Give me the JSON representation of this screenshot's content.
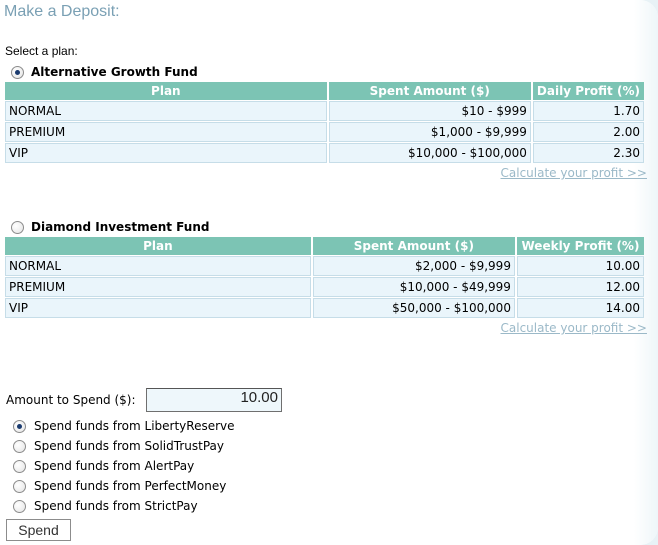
{
  "page": {
    "title": "Make a Deposit:",
    "select_label": "Select a plan:"
  },
  "funds": [
    {
      "name": "Alternative Growth Fund",
      "selected": true,
      "columns": [
        "Plan",
        "Spent Amount ($)",
        "Daily Profit (%)"
      ],
      "rows": [
        [
          "NORMAL",
          "$10 - $999",
          "1.70"
        ],
        [
          "PREMIUM",
          "$1,000 - $9,999",
          "2.00"
        ],
        [
          "VIP",
          "$10,000 - $100,000",
          "2.30"
        ]
      ],
      "calc_link": "Calculate your profit >>"
    },
    {
      "name": "Diamond Investment Fund",
      "selected": false,
      "columns": [
        "Plan",
        "Spent Amount ($)",
        "Weekly Profit (%)"
      ],
      "rows": [
        [
          "NORMAL",
          "$2,000 - $9,999",
          "10.00"
        ],
        [
          "PREMIUM",
          "$10,000 - $49,999",
          "12.00"
        ],
        [
          "VIP",
          "$50,000 - $100,000",
          "14.00"
        ]
      ],
      "calc_link": "Calculate your profit >>"
    }
  ],
  "amount": {
    "label": "Amount to Spend ($):",
    "value": "10.00"
  },
  "payment_options": [
    {
      "label": "Spend funds from LibertyReserve",
      "selected": true
    },
    {
      "label": "Spend funds from SolidTrustPay",
      "selected": false
    },
    {
      "label": "Spend funds from AlertPay",
      "selected": false
    },
    {
      "label": "Spend funds from PerfectMoney",
      "selected": false
    },
    {
      "label": "Spend funds from StrictPay",
      "selected": false
    }
  ],
  "submit": {
    "label": "Spend"
  },
  "colors": {
    "header_bg": "#7cc4b4",
    "cell_bg": "#eaf5fb",
    "title": "#7aa0b4",
    "link": "#9bb9c8"
  }
}
